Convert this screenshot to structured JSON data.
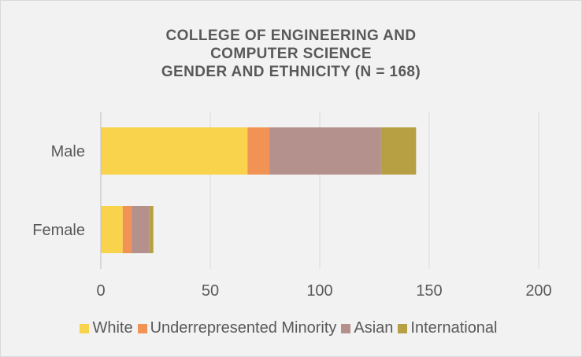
{
  "chart_data": {
    "type": "bar",
    "orientation": "horizontal",
    "stacked": true,
    "title": [
      "COLLEGE OF ENGINEERING AND",
      "COMPUTER SCIENCE",
      "GENDER AND ETHNICITY (N = 168)"
    ],
    "categories": [
      "Male",
      "Female"
    ],
    "series": [
      {
        "name": "White",
        "color": "#F9D34B",
        "values": [
          67,
          10
        ]
      },
      {
        "name": "Underrepresented Minority",
        "color": "#F09355",
        "values": [
          10,
          4
        ]
      },
      {
        "name": "Asian",
        "color": "#B4918D",
        "values": [
          51,
          8
        ]
      },
      {
        "name": "International",
        "color": "#B7A044",
        "values": [
          16,
          2
        ]
      }
    ],
    "xlim": [
      0,
      200
    ],
    "xticks": [
      "0",
      "50",
      "100",
      "150",
      "200"
    ],
    "grid": true,
    "legend_position": "bottom"
  }
}
